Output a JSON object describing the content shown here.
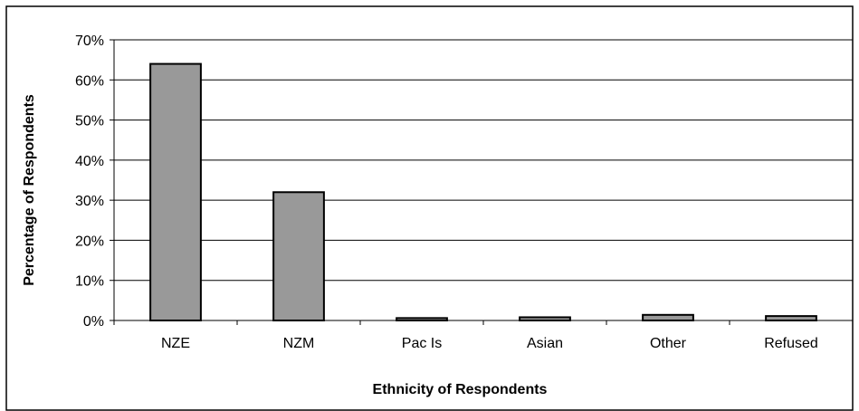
{
  "chart_data": {
    "type": "bar",
    "title": "",
    "xlabel": "Ethnicity of Respondents",
    "ylabel": "Percentage of Respondents",
    "categories": [
      "NZE",
      "NZM",
      "Pac Is",
      "Asian",
      "Other",
      "Refused"
    ],
    "values": [
      64,
      32,
      0.6,
      0.8,
      1.4,
      1.1
    ],
    "value_unit": "%",
    "ylim": [
      0,
      70
    ],
    "yticks": [
      0,
      10,
      20,
      30,
      40,
      50,
      60,
      70
    ],
    "ytick_labels": [
      "0%",
      "10%",
      "20%",
      "30%",
      "40%",
      "50%",
      "60%",
      "70%"
    ],
    "grid": true,
    "legend": "none",
    "colors": {
      "bar_fill": "#999999",
      "bar_stroke": "#000000",
      "gridline": "#000000",
      "background": "#ffffff",
      "frame": "#000000"
    }
  }
}
